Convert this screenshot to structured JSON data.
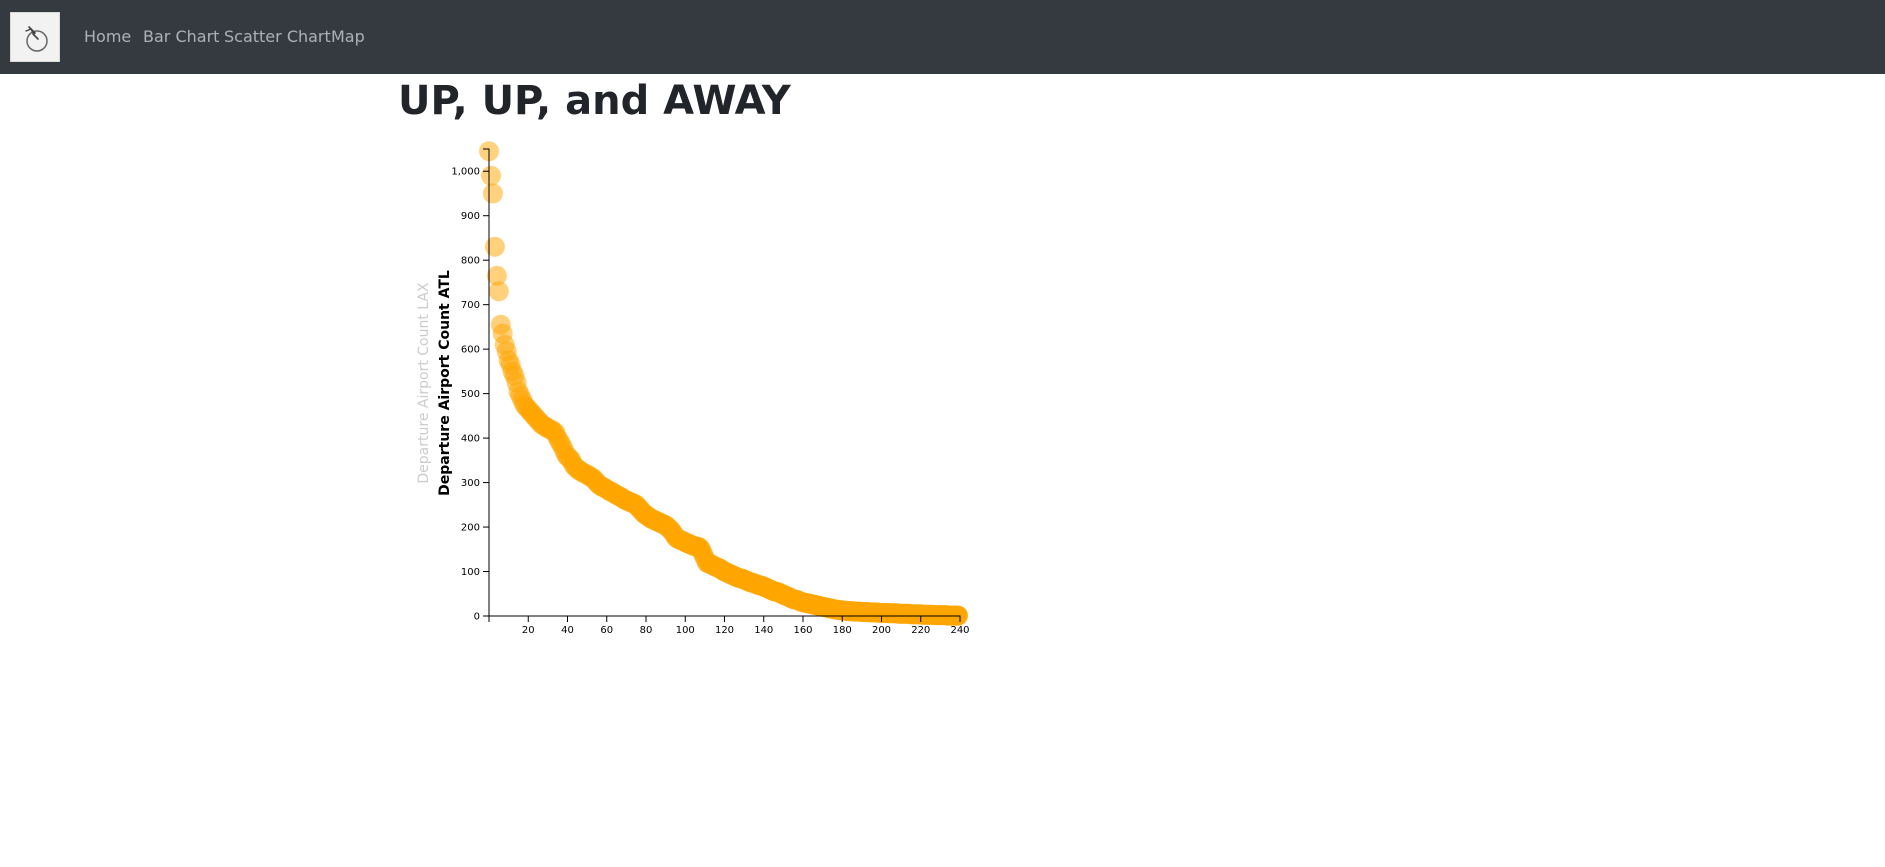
{
  "nav": {
    "brand_icon": "pointer-hand-icon",
    "links": [
      "Home",
      "Bar Chart",
      "Scatter Chart",
      "Map"
    ]
  },
  "page": {
    "title": "UP, UP, and AWAY"
  },
  "colors": {
    "navbar": "#343a40",
    "point": "#ffa500",
    "inactive_label": "#cccccc",
    "text": "#212529"
  },
  "chart_data": {
    "type": "scatter",
    "ylabel_active": "Departure Airport Count ATL",
    "ylabel_inactive": "Departure Airport Count LAX",
    "xlabel": "",
    "xlim": [
      0,
      240
    ],
    "ylim": [
      0,
      1050
    ],
    "x_ticks": [
      "20",
      "40",
      "60",
      "80",
      "100",
      "120",
      "140",
      "160",
      "180",
      "200",
      "220",
      "240"
    ],
    "y_ticks": [
      "0",
      "100",
      "200",
      "300",
      "400",
      "500",
      "600",
      "700",
      "800",
      "900",
      "1,000"
    ],
    "point_color": "#ffa500",
    "point_opacity_range": [
      0.5,
      0.9
    ],
    "grid": false,
    "points": [
      [
        0,
        1045
      ],
      [
        1,
        990
      ],
      [
        2,
        950
      ],
      [
        3,
        830
      ],
      [
        4,
        765
      ],
      [
        5,
        730
      ],
      [
        6,
        655
      ],
      [
        7,
        635
      ],
      [
        8,
        610
      ],
      [
        9,
        595
      ],
      [
        10,
        575
      ],
      [
        11,
        565
      ],
      [
        12,
        550
      ],
      [
        13,
        540
      ],
      [
        14,
        525
      ],
      [
        15,
        505
      ],
      [
        16,
        495
      ],
      [
        17,
        485
      ],
      [
        18,
        475
      ],
      [
        19,
        470
      ],
      [
        20,
        465
      ],
      [
        21,
        460
      ],
      [
        22,
        455
      ],
      [
        23,
        450
      ],
      [
        24,
        445
      ],
      [
        25,
        440
      ],
      [
        26,
        435
      ],
      [
        27,
        430
      ],
      [
        28,
        428
      ],
      [
        29,
        425
      ],
      [
        30,
        422
      ],
      [
        31,
        420
      ],
      [
        32,
        418
      ],
      [
        33,
        415
      ],
      [
        34,
        410
      ],
      [
        35,
        400
      ],
      [
        36,
        392
      ],
      [
        37,
        385
      ],
      [
        38,
        375
      ],
      [
        39,
        365
      ],
      [
        40,
        358
      ],
      [
        41,
        355
      ],
      [
        42,
        350
      ],
      [
        43,
        340
      ],
      [
        44,
        335
      ],
      [
        45,
        330
      ],
      [
        46,
        328
      ],
      [
        47,
        325
      ],
      [
        48,
        322
      ],
      [
        49,
        320
      ],
      [
        50,
        318
      ],
      [
        51,
        315
      ],
      [
        52,
        312
      ],
      [
        53,
        310
      ],
      [
        54,
        305
      ],
      [
        55,
        300
      ],
      [
        56,
        295
      ],
      [
        57,
        292
      ],
      [
        58,
        290
      ],
      [
        59,
        288
      ],
      [
        60,
        285
      ],
      [
        61,
        282
      ],
      [
        62,
        280
      ],
      [
        63,
        278
      ],
      [
        64,
        275
      ],
      [
        65,
        272
      ],
      [
        66,
        270
      ],
      [
        67,
        268
      ],
      [
        68,
        265
      ],
      [
        69,
        262
      ],
      [
        70,
        260
      ],
      [
        71,
        258
      ],
      [
        72,
        256
      ],
      [
        73,
        254
      ],
      [
        74,
        252
      ],
      [
        75,
        250
      ],
      [
        76,
        245
      ],
      [
        77,
        240
      ],
      [
        78,
        235
      ],
      [
        79,
        230
      ],
      [
        80,
        227
      ],
      [
        81,
        224
      ],
      [
        82,
        221
      ],
      [
        83,
        218
      ],
      [
        84,
        216
      ],
      [
        85,
        214
      ],
      [
        86,
        212
      ],
      [
        87,
        210
      ],
      [
        88,
        208
      ],
      [
        89,
        206
      ],
      [
        90,
        204
      ],
      [
        91,
        200
      ],
      [
        92,
        196
      ],
      [
        93,
        192
      ],
      [
        94,
        185
      ],
      [
        95,
        178
      ],
      [
        96,
        174
      ],
      [
        97,
        172
      ],
      [
        98,
        170
      ],
      [
        99,
        168
      ],
      [
        100,
        166
      ],
      [
        101,
        164
      ],
      [
        102,
        162
      ],
      [
        103,
        160
      ],
      [
        104,
        158
      ],
      [
        105,
        157
      ],
      [
        106,
        156
      ],
      [
        107,
        155
      ],
      [
        108,
        150
      ],
      [
        109,
        140
      ],
      [
        110,
        130
      ],
      [
        111,
        120
      ],
      [
        112,
        118
      ],
      [
        113,
        116
      ],
      [
        114,
        114
      ],
      [
        115,
        112
      ],
      [
        116,
        110
      ],
      [
        117,
        108
      ],
      [
        118,
        106
      ],
      [
        119,
        103
      ],
      [
        120,
        100
      ],
      [
        121,
        98
      ],
      [
        122,
        96
      ],
      [
        123,
        94
      ],
      [
        124,
        92
      ],
      [
        125,
        90
      ],
      [
        126,
        88
      ],
      [
        127,
        86
      ],
      [
        128,
        85
      ],
      [
        129,
        84
      ],
      [
        130,
        82
      ],
      [
        131,
        80
      ],
      [
        132,
        78
      ],
      [
        133,
        76
      ],
      [
        134,
        75
      ],
      [
        135,
        74
      ],
      [
        136,
        72
      ],
      [
        137,
        70
      ],
      [
        138,
        69
      ],
      [
        139,
        68
      ],
      [
        140,
        66
      ],
      [
        141,
        64
      ],
      [
        142,
        62
      ],
      [
        143,
        60
      ],
      [
        144,
        58
      ],
      [
        145,
        56
      ],
      [
        146,
        55
      ],
      [
        147,
        54
      ],
      [
        148,
        52
      ],
      [
        149,
        50
      ],
      [
        150,
        48
      ],
      [
        151,
        46
      ],
      [
        152,
        44
      ],
      [
        153,
        42
      ],
      [
        154,
        40
      ],
      [
        155,
        38
      ],
      [
        156,
        37
      ],
      [
        157,
        36
      ],
      [
        158,
        34
      ],
      [
        159,
        32
      ],
      [
        160,
        31
      ],
      [
        161,
        30
      ],
      [
        162,
        29
      ],
      [
        163,
        28
      ],
      [
        164,
        27
      ],
      [
        165,
        26
      ],
      [
        166,
        25
      ],
      [
        167,
        24
      ],
      [
        168,
        23
      ],
      [
        169,
        22
      ],
      [
        170,
        21
      ],
      [
        171,
        20
      ],
      [
        172,
        19
      ],
      [
        173,
        18
      ],
      [
        174,
        17
      ],
      [
        175,
        16
      ],
      [
        176,
        15
      ],
      [
        177,
        14
      ],
      [
        178,
        14
      ],
      [
        179,
        13
      ],
      [
        180,
        13
      ],
      [
        181,
        12
      ],
      [
        182,
        12
      ],
      [
        183,
        11
      ],
      [
        184,
        11
      ],
      [
        185,
        11
      ],
      [
        186,
        10
      ],
      [
        187,
        10
      ],
      [
        188,
        10
      ],
      [
        189,
        10
      ],
      [
        190,
        9
      ],
      [
        191,
        9
      ],
      [
        192,
        9
      ],
      [
        193,
        9
      ],
      [
        194,
        8
      ],
      [
        195,
        8
      ],
      [
        196,
        8
      ],
      [
        197,
        8
      ],
      [
        198,
        8
      ],
      [
        199,
        7
      ],
      [
        200,
        7
      ],
      [
        201,
        7
      ],
      [
        202,
        7
      ],
      [
        203,
        7
      ],
      [
        204,
        6
      ],
      [
        205,
        6
      ],
      [
        206,
        6
      ],
      [
        207,
        6
      ],
      [
        208,
        6
      ],
      [
        209,
        5
      ],
      [
        210,
        5
      ],
      [
        211,
        5
      ],
      [
        212,
        5
      ],
      [
        213,
        5
      ],
      [
        214,
        5
      ],
      [
        215,
        4
      ],
      [
        216,
        4
      ],
      [
        217,
        4
      ],
      [
        218,
        4
      ],
      [
        219,
        4
      ],
      [
        220,
        4
      ],
      [
        221,
        3
      ],
      [
        222,
        3
      ],
      [
        223,
        3
      ],
      [
        224,
        3
      ],
      [
        225,
        3
      ],
      [
        226,
        3
      ],
      [
        227,
        2
      ],
      [
        228,
        2
      ],
      [
        229,
        2
      ],
      [
        230,
        2
      ],
      [
        231,
        2
      ],
      [
        232,
        2
      ],
      [
        233,
        2
      ],
      [
        234,
        1
      ],
      [
        235,
        1
      ],
      [
        236,
        1
      ],
      [
        237,
        1
      ],
      [
        238,
        1
      ],
      [
        239,
        1
      ]
    ]
  }
}
